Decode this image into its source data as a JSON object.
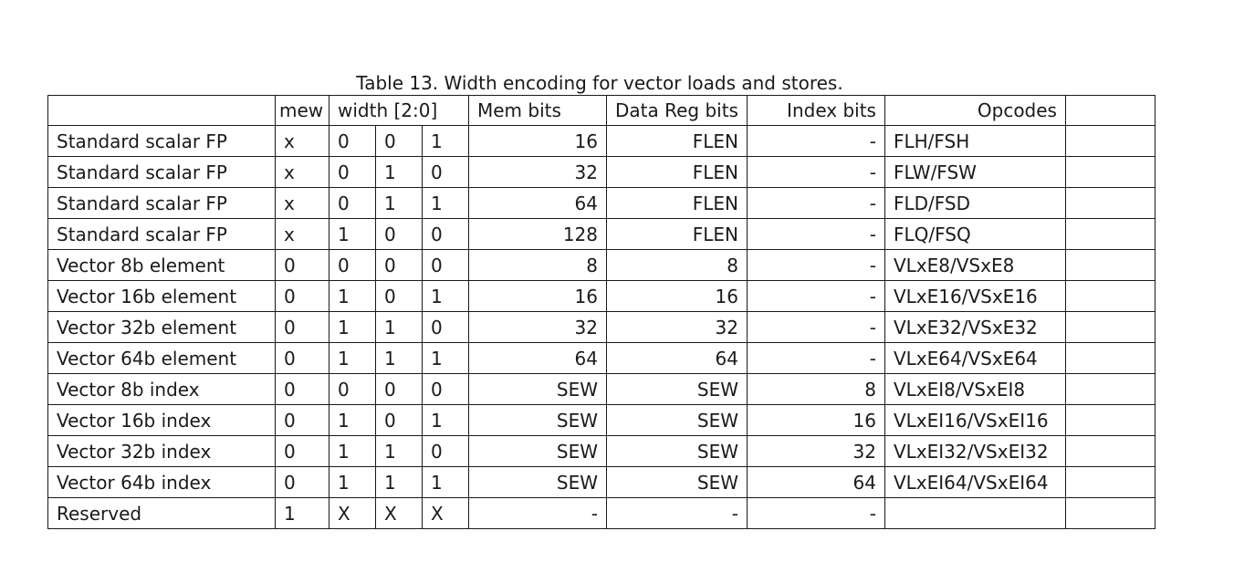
{
  "caption": "Table 13. Width encoding for vector loads and stores.",
  "headers": {
    "blank": "",
    "mew": "mew",
    "width": "width [2:0]",
    "mem_bits": "Mem bits",
    "data_reg_bits": "Data Reg bits",
    "index_bits": "Index bits",
    "opcodes": "Opcodes",
    "extra": ""
  },
  "rows": [
    {
      "name": "Standard scalar FP",
      "mew": "x",
      "w2": "0",
      "w1": "0",
      "w0": "1",
      "mem": "16",
      "data": "FLEN",
      "index": "-",
      "op": "FLH/FSH",
      "extra": ""
    },
    {
      "name": "Standard scalar FP",
      "mew": "x",
      "w2": "0",
      "w1": "1",
      "w0": "0",
      "mem": "32",
      "data": "FLEN",
      "index": "-",
      "op": "FLW/FSW",
      "extra": ""
    },
    {
      "name": "Standard scalar FP",
      "mew": "x",
      "w2": "0",
      "w1": "1",
      "w0": "1",
      "mem": "64",
      "data": "FLEN",
      "index": "-",
      "op": "FLD/FSD",
      "extra": ""
    },
    {
      "name": "Standard scalar FP",
      "mew": "x",
      "w2": "1",
      "w1": "0",
      "w0": "0",
      "mem": "128",
      "data": "FLEN",
      "index": "-",
      "op": "FLQ/FSQ",
      "extra": ""
    },
    {
      "name": "Vector 8b element",
      "mew": "0",
      "w2": "0",
      "w1": "0",
      "w0": "0",
      "mem": "8",
      "data": "8",
      "index": "-",
      "op": "VLxE8/VSxE8",
      "extra": ""
    },
    {
      "name": "Vector 16b element",
      "mew": "0",
      "w2": "1",
      "w1": "0",
      "w0": "1",
      "mem": "16",
      "data": "16",
      "index": "-",
      "op": "VLxE16/VSxE16",
      "extra": ""
    },
    {
      "name": "Vector 32b element",
      "mew": "0",
      "w2": "1",
      "w1": "1",
      "w0": "0",
      "mem": "32",
      "data": "32",
      "index": "-",
      "op": "VLxE32/VSxE32",
      "extra": ""
    },
    {
      "name": "Vector 64b element",
      "mew": "0",
      "w2": "1",
      "w1": "1",
      "w0": "1",
      "mem": "64",
      "data": "64",
      "index": "-",
      "op": "VLxE64/VSxE64",
      "extra": ""
    },
    {
      "name": "Vector 8b index",
      "mew": "0",
      "w2": "0",
      "w1": "0",
      "w0": "0",
      "mem": "SEW",
      "data": "SEW",
      "index": "8",
      "op": "VLxEI8/VSxEI8",
      "extra": ""
    },
    {
      "name": "Vector 16b index",
      "mew": "0",
      "w2": "1",
      "w1": "0",
      "w0": "1",
      "mem": "SEW",
      "data": "SEW",
      "index": "16",
      "op": "VLxEI16/VSxEI16",
      "extra": ""
    },
    {
      "name": "Vector 32b index",
      "mew": "0",
      "w2": "1",
      "w1": "1",
      "w0": "0",
      "mem": "SEW",
      "data": "SEW",
      "index": "32",
      "op": "VLxEI32/VSxEI32",
      "extra": ""
    },
    {
      "name": "Vector 64b index",
      "mew": "0",
      "w2": "1",
      "w1": "1",
      "w0": "1",
      "mem": "SEW",
      "data": "SEW",
      "index": "64",
      "op": "VLxEI64/VSxEI64",
      "extra": ""
    },
    {
      "name": "Reserved",
      "mew": "1",
      "w2": "X",
      "w1": "X",
      "w0": "X",
      "mem": "-",
      "data": "-",
      "index": "-",
      "op": "",
      "extra": ""
    }
  ]
}
